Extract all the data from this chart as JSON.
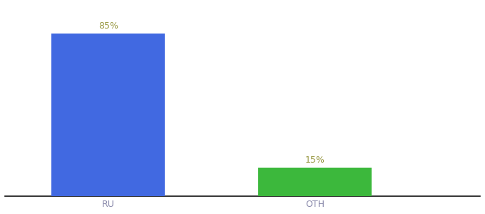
{
  "categories": [
    "RU",
    "OTH"
  ],
  "values": [
    85,
    15
  ],
  "bar_colors": [
    "#4169e1",
    "#3cb83c"
  ],
  "label_color": "#999944",
  "tick_color": "#8888aa",
  "background_color": "#ffffff",
  "ylim": [
    0,
    100
  ],
  "label_fontsize": 9,
  "tick_fontsize": 9,
  "bar_width": 0.55,
  "x_positions": [
    1,
    2
  ],
  "xlim": [
    0.5,
    2.8
  ]
}
